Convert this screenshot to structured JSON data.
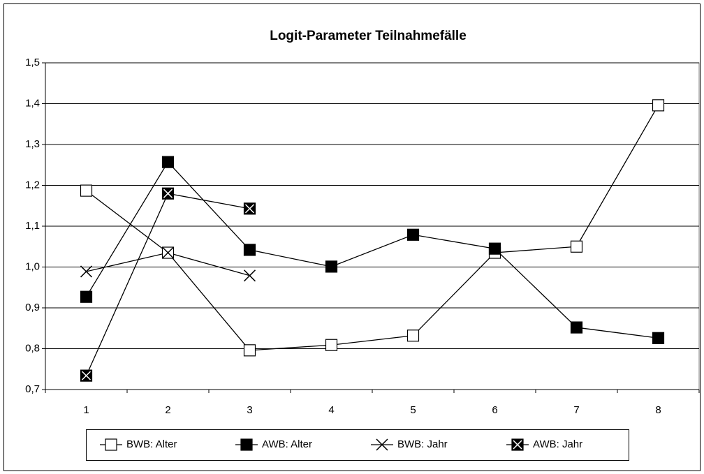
{
  "chart_data": {
    "type": "line",
    "title": "Logit-Parameter Teilnahmefälle",
    "categories": [
      "1",
      "2",
      "3",
      "4",
      "5",
      "6",
      "7",
      "8"
    ],
    "series": [
      {
        "name": "BWB: Alter",
        "color": "#000000",
        "marker": "square-open",
        "values": [
          1.187,
          1.035,
          0.796,
          0.809,
          0.832,
          1.035,
          1.05,
          1.396
        ]
      },
      {
        "name": "AWB: Alter",
        "color": "#000000",
        "marker": "square-filled",
        "values": [
          0.927,
          1.257,
          1.042,
          1.001,
          1.079,
          1.045,
          0.852,
          0.826
        ]
      },
      {
        "name": "BWB: Jahr",
        "color": "#000000",
        "marker": "cross",
        "values": [
          0.989,
          1.035,
          0.979,
          null,
          null,
          null,
          null,
          null
        ]
      },
      {
        "name": "AWB: Jahr",
        "color": "#000000",
        "marker": "square-cross",
        "values": [
          0.734,
          1.18,
          1.143,
          null,
          null,
          null,
          null,
          null
        ]
      }
    ],
    "ylim": [
      0.7,
      1.5
    ],
    "yticks": [
      {
        "value": 0.7,
        "label": "0,7"
      },
      {
        "value": 0.8,
        "label": "0,8"
      },
      {
        "value": 0.9,
        "label": "0,9"
      },
      {
        "value": 1.0,
        "label": "1,0"
      },
      {
        "value": 1.1,
        "label": "1,1"
      },
      {
        "value": 1.2,
        "label": "1,2"
      },
      {
        "value": 1.3,
        "label": "1,3"
      },
      {
        "value": 1.4,
        "label": "1,4"
      },
      {
        "value": 1.5,
        "label": "1,5"
      }
    ],
    "grid": true,
    "legend": "bottom"
  }
}
